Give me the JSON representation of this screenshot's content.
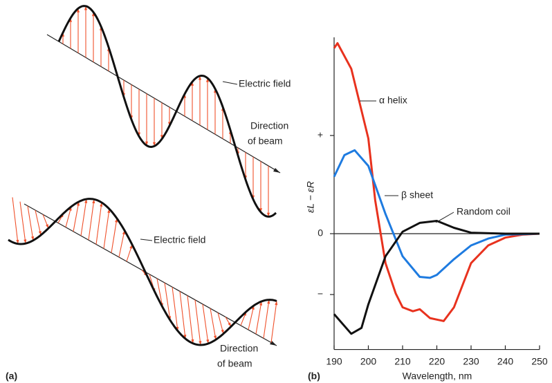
{
  "panel_a": {
    "label": "(a)",
    "top": {
      "field_label": "Electric field",
      "beam_label": [
        "Direction",
        "of beam"
      ]
    },
    "bottom": {
      "field_label": "Electric field",
      "beam_label": [
        "Direction",
        "of beam"
      ]
    }
  },
  "chart_data": {
    "type": "line",
    "panel_label": "(b)",
    "x_label": "Wavelength, nm",
    "y_label": "εL − εR",
    "xlim": [
      190,
      250
    ],
    "xticks": [
      190,
      200,
      210,
      220,
      230,
      240,
      250
    ],
    "ylim": [
      -1.18,
      2
    ],
    "yticks": [
      {
        "value": 1,
        "label": "+"
      },
      0,
      {
        "value": -0.62,
        "label": "−"
      }
    ],
    "series": [
      {
        "name": "α helix",
        "color": "#e8321e",
        "x": [
          190,
          191,
          195,
          200,
          202,
          205,
          208,
          210,
          213,
          215,
          218,
          222,
          225,
          230,
          235,
          240,
          245,
          250
        ],
        "values": [
          1.89,
          1.94,
          1.68,
          0.97,
          0.34,
          -0.3,
          -0.61,
          -0.75,
          -0.79,
          -0.77,
          -0.86,
          -0.89,
          -0.75,
          -0.3,
          -0.12,
          -0.04,
          -0.01,
          0
        ]
      },
      {
        "name": "β sheet",
        "color": "#1e7be0",
        "x": [
          190,
          193,
          196,
          200,
          205,
          210,
          215,
          218,
          220,
          225,
          230,
          235,
          240,
          250
        ],
        "values": [
          0.58,
          0.8,
          0.85,
          0.69,
          0.2,
          -0.23,
          -0.44,
          -0.45,
          -0.42,
          -0.26,
          -0.12,
          -0.05,
          -0.01,
          0
        ]
      },
      {
        "name": "Random coil",
        "color": "#111111",
        "x": [
          190,
          195,
          198,
          200,
          205,
          210,
          215,
          220,
          225,
          230,
          240,
          250
        ],
        "values": [
          -0.82,
          -1.02,
          -0.96,
          -0.72,
          -0.23,
          0.02,
          0.11,
          0.13,
          0.06,
          0.01,
          0,
          0
        ]
      }
    ]
  }
}
